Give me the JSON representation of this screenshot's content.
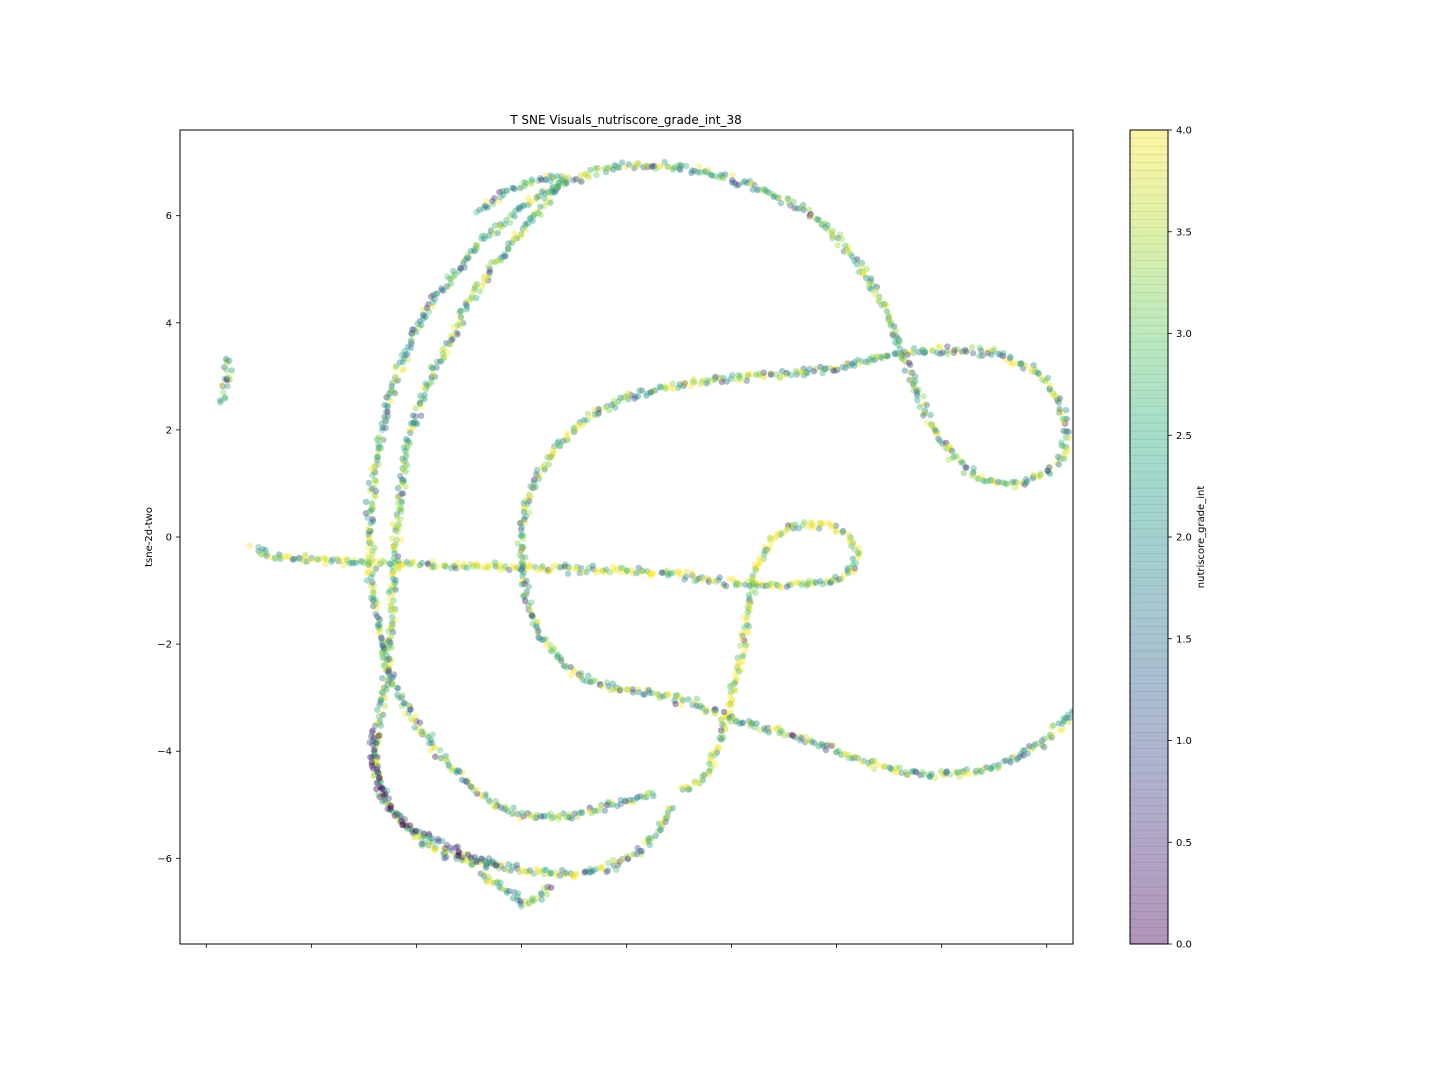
{
  "chart_data": {
    "type": "scatter",
    "title": "T SNE Visuals_nutriscore_grade_int_38",
    "xlabel": "",
    "ylabel": "tsne-2d-two",
    "xlim": [
      -4.5,
      12.5
    ],
    "ylim": [
      -7.6,
      7.6
    ],
    "x_tick_values": [
      -4,
      -2,
      0,
      2,
      4,
      6,
      8,
      10,
      12
    ],
    "x_tick_labels_shown": false,
    "y_ticks": [
      -6,
      -4,
      -2,
      0,
      2,
      4,
      6
    ],
    "y_tick_labels": [
      "−6",
      "−4",
      "−2",
      "0",
      "2",
      "4",
      "6"
    ],
    "grid": false,
    "point_alpha": 0.4,
    "colormap": "viridis",
    "colorbar": {
      "label": "nutriscore_grade_int",
      "range": [
        0.0,
        4.0
      ],
      "ticks": [
        0.0,
        0.5,
        1.0,
        1.5,
        2.0,
        2.5,
        3.0,
        3.5,
        4.0
      ],
      "tick_labels": [
        "0.0",
        "0.5",
        "1.0",
        "1.5",
        "2.0",
        "2.5",
        "3.0",
        "3.5",
        "4.0"
      ]
    },
    "point_groups": [
      {
        "name": "isolated cluster",
        "dominant_value": 2.5,
        "path": [
          [
            -3.7,
            2.55
          ],
          [
            -3.68,
            2.65
          ],
          [
            -3.6,
            3.2
          ],
          [
            -3.58,
            3.35
          ]
        ]
      },
      {
        "name": "horizontal line",
        "dominant_value": 3.6,
        "path": [
          [
            -3.1,
            -0.2
          ],
          [
            -2.8,
            -0.35
          ],
          [
            -2.0,
            -0.42
          ],
          [
            -1.0,
            -0.48
          ],
          [
            0.0,
            -0.52
          ],
          [
            1.0,
            -0.55
          ],
          [
            2.0,
            -0.57
          ],
          [
            3.0,
            -0.6
          ],
          [
            4.0,
            -0.62
          ],
          [
            5.0,
            -0.7
          ],
          [
            6.0,
            -0.85
          ],
          [
            7.0,
            -0.9
          ],
          [
            7.8,
            -0.85
          ],
          [
            8.3,
            -0.65
          ],
          [
            8.4,
            -0.3
          ],
          [
            8.2,
            0.05
          ],
          [
            7.8,
            0.22
          ],
          [
            7.2,
            0.2
          ],
          [
            6.8,
            0.0
          ],
          [
            6.5,
            -0.5
          ],
          [
            6.4,
            -1.0
          ],
          [
            6.3,
            -1.5
          ],
          [
            6.2,
            -2.2
          ],
          [
            6.0,
            -3.0
          ],
          [
            5.8,
            -3.8
          ],
          [
            5.5,
            -4.5
          ],
          [
            5.0,
            -4.75
          ]
        ]
      },
      {
        "name": "outer loop",
        "dominant_value": 2.8,
        "path": [
          [
            4.5,
            -4.8
          ],
          [
            3.5,
            -5.05
          ],
          [
            3.0,
            -5.2
          ],
          [
            2.4,
            -5.25
          ],
          [
            2.0,
            -5.2
          ],
          [
            1.5,
            -5.0
          ],
          [
            1.0,
            -4.6
          ],
          [
            0.5,
            -4.1
          ],
          [
            0.0,
            -3.5
          ],
          [
            -0.4,
            -2.8
          ],
          [
            -0.6,
            -2.2
          ],
          [
            -0.75,
            -1.5
          ],
          [
            -0.85,
            -0.8
          ],
          [
            -0.9,
            0.0
          ],
          [
            -0.85,
            0.8
          ],
          [
            -0.75,
            1.5
          ],
          [
            -0.6,
            2.2
          ],
          [
            -0.4,
            3.0
          ],
          [
            -0.1,
            3.7
          ],
          [
            0.3,
            4.4
          ],
          [
            0.8,
            5.0
          ],
          [
            1.2,
            5.5
          ],
          [
            1.7,
            5.9
          ],
          [
            2.2,
            6.3
          ],
          [
            2.8,
            6.6
          ],
          [
            3.5,
            6.85
          ],
          [
            4.2,
            6.95
          ],
          [
            5.0,
            6.9
          ],
          [
            5.8,
            6.75
          ],
          [
            6.6,
            6.5
          ],
          [
            7.4,
            6.1
          ],
          [
            8.0,
            5.6
          ],
          [
            8.5,
            5.0
          ],
          [
            8.9,
            4.3
          ],
          [
            9.2,
            3.6
          ],
          [
            9.5,
            2.8
          ],
          [
            9.8,
            2.1
          ],
          [
            10.2,
            1.5
          ],
          [
            10.7,
            1.1
          ],
          [
            11.3,
            1.0
          ],
          [
            11.9,
            1.15
          ],
          [
            12.3,
            1.5
          ],
          [
            12.4,
            2.0
          ],
          [
            12.2,
            2.6
          ],
          [
            11.8,
            3.1
          ],
          [
            11.0,
            3.45
          ],
          [
            10.0,
            3.5
          ],
          [
            9.0,
            3.4
          ],
          [
            8.0,
            3.15
          ],
          [
            7.0,
            3.05
          ],
          [
            6.0,
            2.95
          ],
          [
            5.0,
            2.85
          ],
          [
            4.0,
            2.6
          ],
          [
            3.2,
            2.2
          ],
          [
            2.6,
            1.6
          ],
          [
            2.2,
            0.9
          ],
          [
            2.0,
            0.2
          ],
          [
            2.0,
            -0.5
          ],
          [
            2.1,
            -1.2
          ],
          [
            2.4,
            -1.9
          ],
          [
            2.8,
            -2.4
          ],
          [
            3.3,
            -2.7
          ],
          [
            4.0,
            -2.85
          ],
          [
            4.8,
            -2.95
          ],
          [
            5.5,
            -3.2
          ],
          [
            6.0,
            -3.4
          ],
          [
            6.8,
            -3.6
          ],
          [
            7.5,
            -3.8
          ],
          [
            8.3,
            -4.1
          ],
          [
            9.0,
            -4.35
          ],
          [
            9.8,
            -4.45
          ],
          [
            10.6,
            -4.4
          ],
          [
            11.3,
            -4.2
          ],
          [
            11.9,
            -3.85
          ],
          [
            12.3,
            -3.45
          ],
          [
            12.6,
            -3.1
          ],
          [
            12.75,
            -2.8
          ]
        ]
      },
      {
        "name": "inner loop",
        "dominant_value": 3.0,
        "path": [
          [
            1.2,
            6.1
          ],
          [
            1.8,
            6.5
          ],
          [
            2.4,
            6.7
          ],
          [
            2.8,
            6.7
          ],
          [
            2.5,
            6.3
          ],
          [
            2.0,
            5.7
          ],
          [
            1.5,
            5.1
          ],
          [
            1.0,
            4.4
          ],
          [
            0.6,
            3.6
          ],
          [
            0.2,
            2.8
          ],
          [
            -0.1,
            2.0
          ],
          [
            -0.25,
            1.2
          ],
          [
            -0.35,
            0.4
          ],
          [
            -0.4,
            -0.4
          ],
          [
            -0.45,
            -1.2
          ],
          [
            -0.5,
            -2.0
          ],
          [
            -0.6,
            -2.8
          ],
          [
            -0.7,
            -3.5
          ],
          [
            -0.8,
            -4.2
          ],
          [
            -0.6,
            -4.9
          ],
          [
            -0.2,
            -5.4
          ],
          [
            0.3,
            -5.8
          ],
          [
            0.9,
            -6.05
          ],
          [
            1.6,
            -6.15
          ],
          [
            2.3,
            -6.25
          ],
          [
            3.0,
            -6.3
          ],
          [
            3.6,
            -6.2
          ],
          [
            4.2,
            -5.9
          ],
          [
            4.6,
            -5.5
          ],
          [
            4.9,
            -5.0
          ]
        ]
      },
      {
        "name": "lower-left branch",
        "dominant_value": 0.6,
        "path": [
          [
            -0.8,
            -3.6
          ],
          [
            -0.85,
            -4.2
          ],
          [
            -0.6,
            -4.9
          ],
          [
            -0.2,
            -5.4
          ],
          [
            0.4,
            -5.7
          ],
          [
            1.0,
            -6.0
          ],
          [
            1.6,
            -6.1
          ]
        ]
      },
      {
        "name": "bottom tip",
        "dominant_value": 2.9,
        "path": [
          [
            1.2,
            -6.3
          ],
          [
            1.6,
            -6.5
          ],
          [
            1.9,
            -6.7
          ],
          [
            2.1,
            -6.9
          ],
          [
            2.3,
            -6.75
          ],
          [
            2.6,
            -6.5
          ]
        ]
      }
    ]
  }
}
